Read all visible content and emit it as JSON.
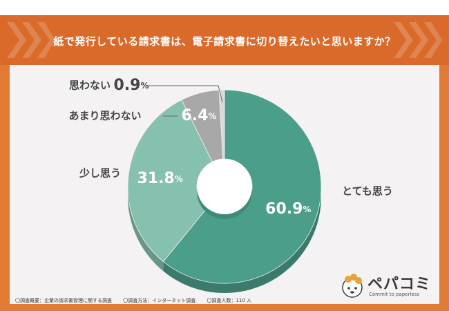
{
  "title": "紙で発行している請求書は、電子請求書に切り替えたいと思いますか？",
  "chart_data": {
    "type": "pie",
    "style": "donut",
    "slices": [
      {
        "label": "とても思う",
        "value": 60.9,
        "color": "#4a9e8a"
      },
      {
        "label": "少し思う",
        "value": 31.8,
        "color": "#86c0ae"
      },
      {
        "label": "あまり思わない",
        "value": 6.4,
        "color": "#a8a8a8"
      },
      {
        "label": "思わない",
        "value": 0.9,
        "color": "#d9d9d9"
      }
    ],
    "unit": "%"
  },
  "footnote": {
    "overview": "〇調査概要：企業の請求書管理に関する調査",
    "method": "〇調査方法：インターネット調査",
    "respondents": "〇調査人数：110 人"
  },
  "logo": {
    "name": "ペパコミ",
    "tagline": "Commit to paperless"
  }
}
